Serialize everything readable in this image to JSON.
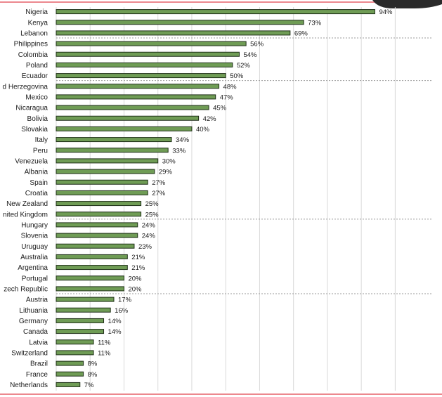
{
  "chart_data": {
    "type": "bar",
    "orientation": "horizontal",
    "categories": [
      "Nigeria",
      "Kenya",
      "Lebanon",
      "Philippines",
      "Colombia",
      "Poland",
      "Ecuador",
      "d Herzegovina",
      "Mexico",
      "Nicaragua",
      "Bolivia",
      "Slovakia",
      "Italy",
      "Peru",
      "Venezuela",
      "Albania",
      "Spain",
      "Croatia",
      "New Zealand",
      "nited Kingdom",
      "Hungary",
      "Slovenia",
      "Uruguay",
      "Australia",
      "Argentina",
      "Portugal",
      "zech Republic",
      "Austria",
      "Lithuania",
      "Germany",
      "Canada",
      "Latvia",
      "Switzerland",
      "Brazil",
      "France",
      "Netherlands"
    ],
    "values": [
      94,
      73,
      69,
      56,
      54,
      52,
      50,
      48,
      47,
      45,
      42,
      40,
      34,
      33,
      30,
      29,
      27,
      27,
      25,
      25,
      24,
      24,
      23,
      21,
      21,
      20,
      20,
      17,
      16,
      14,
      14,
      11,
      11,
      8,
      8,
      7
    ],
    "value_labels": [
      "94%",
      "73%",
      "69%",
      "56%",
      "54%",
      "52%",
      "50%",
      "48%",
      "47%",
      "45%",
      "42%",
      "40%",
      "34%",
      "33%",
      "30%",
      "29%",
      "27%",
      "27%",
      "25%",
      "25%",
      "24%",
      "24%",
      "23%",
      "21%",
      "21%",
      "20%",
      "20%",
      "17%",
      "16%",
      "14%",
      "14%",
      "11%",
      "11%",
      "8%",
      "8%",
      "7%"
    ],
    "group_separators_after": [
      2,
      6,
      19,
      26
    ],
    "xlim": [
      0,
      100
    ],
    "grid": true,
    "bar_color": "#6f9c55",
    "bar_edge_color": "#1f2f18",
    "title": "",
    "xlabel": "",
    "ylabel": ""
  }
}
